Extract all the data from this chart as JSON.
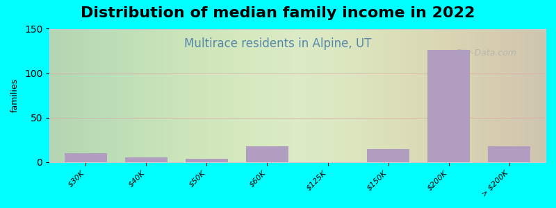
{
  "title": "Distribution of median family income in 2022",
  "subtitle": "Multirace residents in Alpine, UT",
  "xlabel": "",
  "ylabel": "families",
  "background_color": "#00FFFF",
  "plot_bg_color_left": "#d6e8c8",
  "plot_bg_color_right": "#f0ece8",
  "bar_color": "#b09dc0",
  "categories": [
    "$30K",
    "$40K",
    "$50K",
    "$60K",
    "$125K",
    "$150K",
    "$200K",
    "> $200K"
  ],
  "values": [
    10,
    5,
    4,
    18,
    0,
    15,
    126,
    18
  ],
  "ylim": [
    0,
    150
  ],
  "yticks": [
    0,
    50,
    100,
    150
  ],
  "title_fontsize": 16,
  "subtitle_fontsize": 12,
  "subtitle_color": "#5588aa",
  "watermark": "City-Data.com"
}
